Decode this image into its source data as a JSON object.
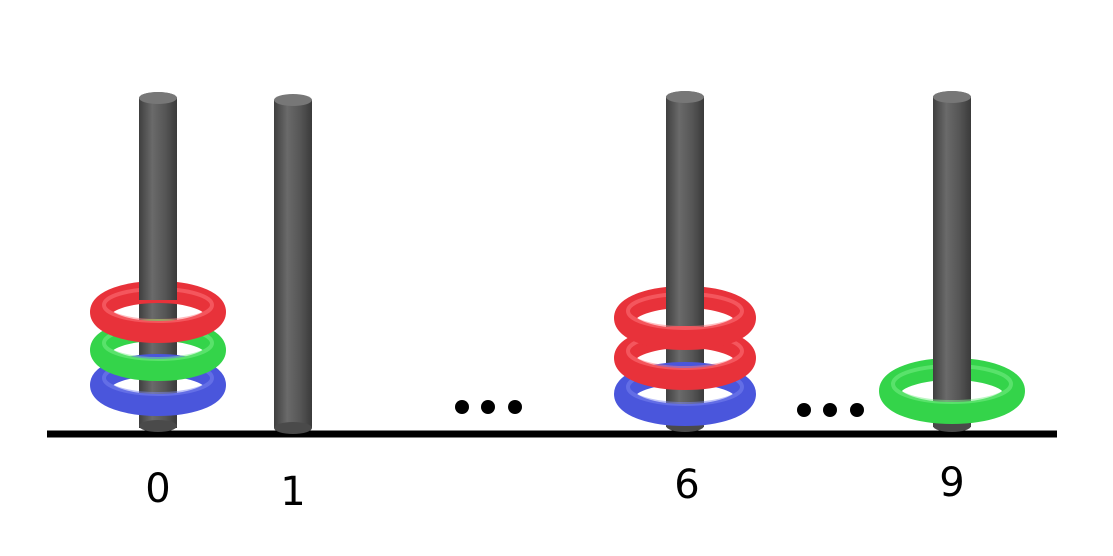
{
  "pegs": [
    {
      "label": "0",
      "rings": [
        "blue",
        "green",
        "red"
      ]
    },
    {
      "label": "1",
      "rings": []
    },
    {
      "label": "6",
      "rings": [
        "blue",
        "red",
        "red"
      ]
    },
    {
      "label": "9",
      "rings": [
        "green"
      ]
    }
  ],
  "ellipsis_count": 2,
  "colors": {
    "peg": "#585858",
    "ground": "#000000",
    "red": "#e8323a",
    "green": "#34d44a",
    "blue": "#4a56dc"
  }
}
